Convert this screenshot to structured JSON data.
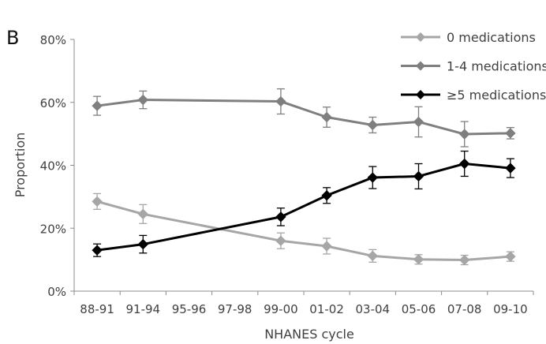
{
  "panel_label": "B",
  "chart_data": {
    "type": "line",
    "title": "",
    "xlabel": "NHANES cycle",
    "ylabel": "Proportion",
    "categories": [
      "88-91",
      "91-94",
      "95-96",
      "97-98",
      "99-00",
      "01-02",
      "03-04",
      "05-06",
      "07-08",
      "09-10"
    ],
    "ylim": [
      0,
      80
    ],
    "yticks": [
      0,
      20,
      40,
      60,
      80
    ],
    "ytick_labels": [
      "0%",
      "20%",
      "40%",
      "60%",
      "80%"
    ],
    "grid": false,
    "legend_position": "top-right",
    "series": [
      {
        "name": "0 medications",
        "color": "#a6a6a6",
        "values": [
          28.5,
          24.5,
          null,
          null,
          16.0,
          14.3,
          11.2,
          10.1,
          9.9,
          11.0
        ],
        "err": [
          2.5,
          3.0,
          null,
          null,
          2.5,
          2.5,
          2.0,
          1.5,
          1.5,
          1.5
        ]
      },
      {
        "name": "1-4 medications",
        "color": "#7f7f7f",
        "values": [
          58.9,
          60.8,
          null,
          null,
          60.3,
          55.3,
          52.8,
          53.8,
          49.9,
          50.2
        ],
        "err": [
          3.0,
          2.8,
          null,
          null,
          4.0,
          3.2,
          2.5,
          4.8,
          4.0,
          1.8
        ]
      },
      {
        "name": "≥5 medications",
        "color": "#000000",
        "values": [
          13.0,
          14.9,
          null,
          null,
          23.6,
          30.4,
          36.1,
          36.5,
          40.5,
          39.1
        ],
        "err": [
          2.0,
          2.8,
          null,
          null,
          2.8,
          2.5,
          3.5,
          4.0,
          4.0,
          3.0
        ]
      }
    ]
  }
}
